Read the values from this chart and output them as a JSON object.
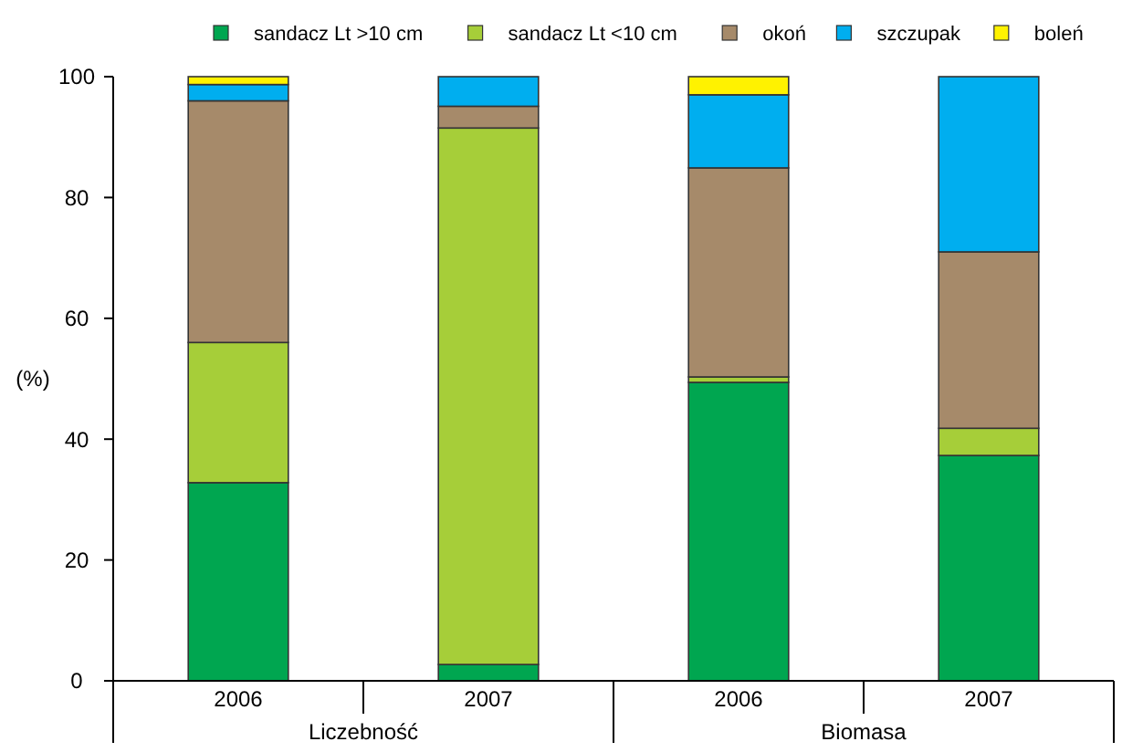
{
  "chart_data": {
    "type": "bar",
    "stacked": true,
    "ylabel": "(%)",
    "categories": [
      "2006",
      "2007",
      "2006",
      "2007"
    ],
    "annotations": [
      "Liczebność",
      "Biomasa"
    ],
    "series": [
      {
        "name": "sandacz Lt >10 cm",
        "color": "#00a650",
        "values": [
          32.8,
          2.7,
          49.4,
          37.3
        ]
      },
      {
        "name": "sandacz Lt <10 cm",
        "color": "#a6ce39",
        "values": [
          23.2,
          88.8,
          0.9,
          4.5
        ]
      },
      {
        "name": "okoń",
        "color": "#a68a6a",
        "values": [
          40,
          3.6,
          34.6,
          29.2
        ]
      },
      {
        "name": "szczupak",
        "color": "#00aeef",
        "values": [
          2.7,
          4.9,
          12.1,
          29
        ]
      },
      {
        "name": "boleń",
        "color": "#fff200",
        "values": [
          1.3,
          0,
          3,
          0
        ]
      }
    ],
    "ylim": [
      0,
      100
    ],
    "yticks": [
      0,
      20,
      40,
      60,
      80,
      100
    ],
    "grid": false,
    "legend": "top"
  }
}
